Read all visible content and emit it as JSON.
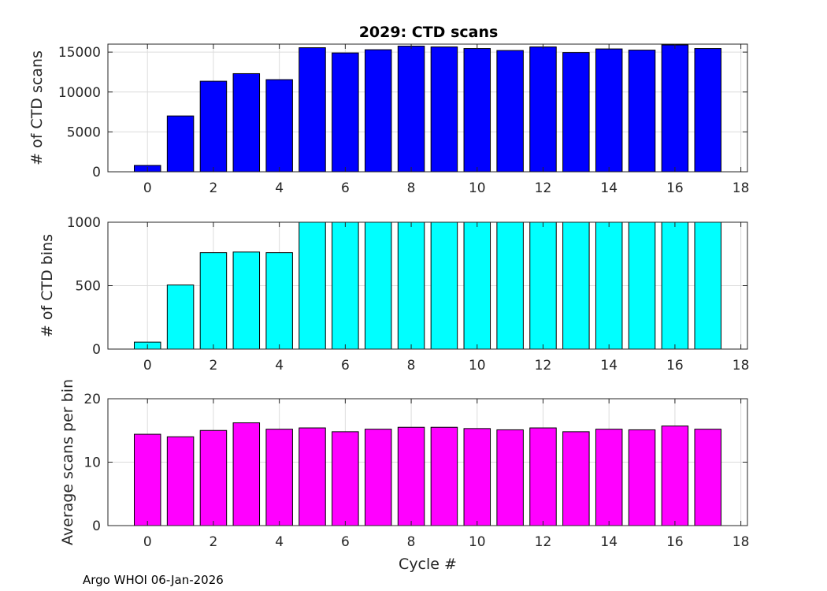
{
  "figure": {
    "title": "2029: CTD scans",
    "xlabel": "Cycle #",
    "footer": "Argo WHOI 06-Jan-2026"
  },
  "chart_data": [
    {
      "type": "bar",
      "title": "2029: CTD scans",
      "xlabel": "",
      "ylabel": "# of CTD scans",
      "x": [
        0,
        1,
        2,
        3,
        4,
        5,
        6,
        7,
        8,
        9,
        10,
        11,
        12,
        13,
        14,
        15,
        16,
        17
      ],
      "values": [
        800,
        7000,
        11350,
        12300,
        11550,
        15550,
        14900,
        15300,
        15750,
        15650,
        15450,
        15200,
        15650,
        14950,
        15400,
        15250,
        15900,
        15450
      ],
      "xlim": [
        -1.2,
        18.2
      ],
      "ylim": [
        0,
        16000
      ],
      "xticks": [
        0,
        2,
        4,
        6,
        8,
        10,
        12,
        14,
        16,
        18
      ],
      "yticks": [
        0,
        5000,
        10000,
        15000
      ],
      "color": "#0000ff",
      "grid": true
    },
    {
      "type": "bar",
      "title": "",
      "xlabel": "",
      "ylabel": "# of CTD bins",
      "x": [
        0,
        1,
        2,
        3,
        4,
        5,
        6,
        7,
        8,
        9,
        10,
        11,
        12,
        13,
        14,
        15,
        16,
        17
      ],
      "values": [
        55,
        505,
        760,
        765,
        760,
        1010,
        1010,
        1010,
        1010,
        1010,
        1010,
        1010,
        1010,
        1010,
        1010,
        1010,
        1010,
        1010
      ],
      "xlim": [
        -1.2,
        18.2
      ],
      "ylim": [
        0,
        1000
      ],
      "xticks": [
        0,
        2,
        4,
        6,
        8,
        10,
        12,
        14,
        16,
        18
      ],
      "yticks": [
        0,
        500,
        1000
      ],
      "color": "#00ffff",
      "grid": true
    },
    {
      "type": "bar",
      "title": "",
      "xlabel": "Cycle #",
      "ylabel": "Average scans per bin",
      "x": [
        0,
        1,
        2,
        3,
        4,
        5,
        6,
        7,
        8,
        9,
        10,
        11,
        12,
        13,
        14,
        15,
        16,
        17
      ],
      "values": [
        14.4,
        14.0,
        15.0,
        16.2,
        15.2,
        15.4,
        14.8,
        15.2,
        15.5,
        15.5,
        15.3,
        15.1,
        15.4,
        14.8,
        15.2,
        15.1,
        15.7,
        15.2
      ],
      "xlim": [
        -1.2,
        18.2
      ],
      "ylim": [
        0,
        20
      ],
      "xticks": [
        0,
        2,
        4,
        6,
        8,
        10,
        12,
        14,
        16,
        18
      ],
      "yticks": [
        0,
        10,
        20
      ],
      "color": "#ff00ff",
      "grid": true
    }
  ]
}
